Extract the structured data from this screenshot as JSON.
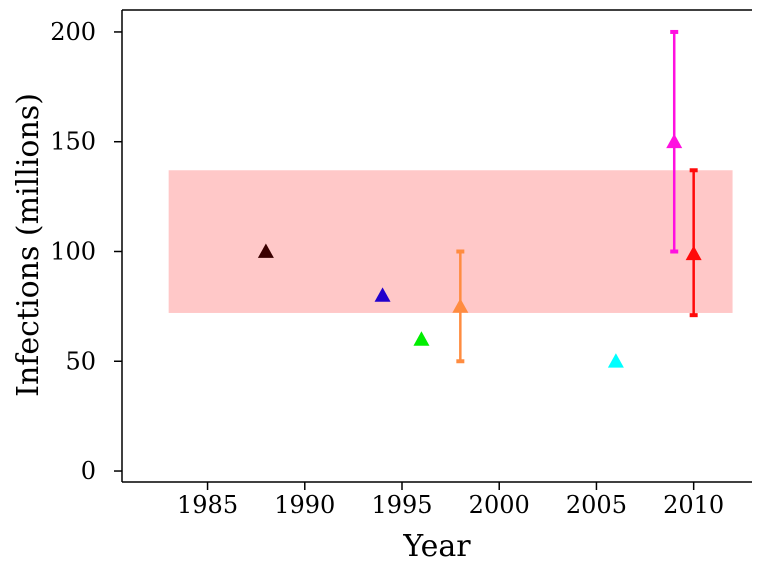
{
  "chart_data": {
    "type": "scatter",
    "xlabel": "Year",
    "ylabel": "Infections (millions)",
    "xlim": [
      1980.6,
      2013.0
    ],
    "ylim": [
      -5,
      210
    ],
    "xticks": [
      1985,
      1990,
      1995,
      2000,
      2005,
      2010
    ],
    "yticks": [
      0,
      50,
      100,
      150,
      200
    ],
    "band": {
      "y_low": 72,
      "y_high": 137,
      "x_from": 1983,
      "x_to": 2012,
      "color": "#ffc8c8"
    },
    "points": [
      {
        "x": 1988,
        "y": 100,
        "color": "#3a0000"
      },
      {
        "x": 1994,
        "y": 80,
        "color": "#2200cc"
      },
      {
        "x": 1996,
        "y": 60,
        "color": "#00ee00"
      },
      {
        "x": 1998,
        "y": 75,
        "low": 50,
        "high": 100,
        "color": "#ff8c40"
      },
      {
        "x": 2006,
        "y": 50,
        "color": "#00ffff"
      },
      {
        "x": 2009,
        "y": 150,
        "low": 100,
        "high": 200,
        "color": "#ff10e0"
      },
      {
        "x": 2010,
        "y": 99,
        "low": 71,
        "high": 137,
        "color": "#ff0a0a"
      }
    ],
    "grid": false,
    "legend": "none"
  }
}
